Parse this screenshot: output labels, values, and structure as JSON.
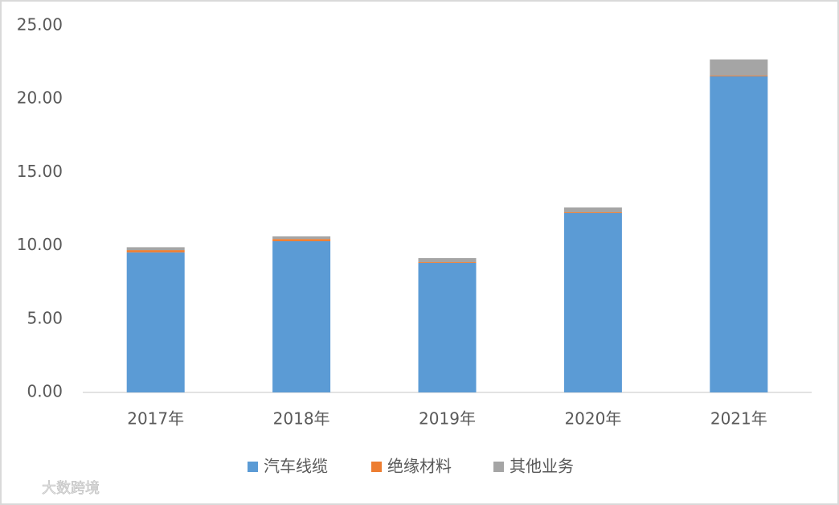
{
  "chart_data": {
    "type": "stacked_bar",
    "categories": [
      "2017年",
      "2018年",
      "2019年",
      "2020年",
      "2021年"
    ],
    "series": [
      {
        "name": "汽车线缆",
        "color": "#5b9bd5",
        "values": [
          9.55,
          10.31,
          8.83,
          12.23,
          21.55
        ]
      },
      {
        "name": "绝缘材料",
        "color": "#ed7d31",
        "values": [
          0.15,
          0.15,
          0.05,
          0.05,
          0.05
        ]
      },
      {
        "name": "其他业务",
        "color": "#a5a5a5",
        "values": [
          0.2,
          0.18,
          0.28,
          0.33,
          1.1
        ]
      }
    ],
    "ylim": [
      0,
      25
    ],
    "yticks": [
      {
        "value": 0,
        "label": "0.00"
      },
      {
        "value": 5,
        "label": "5.00"
      },
      {
        "value": 10,
        "label": "10.00"
      },
      {
        "value": 15,
        "label": "15.00"
      },
      {
        "value": 20,
        "label": "20.00"
      },
      {
        "value": 25,
        "label": "25.00"
      }
    ],
    "legend": "bottom",
    "watermark": "大数跨境"
  }
}
